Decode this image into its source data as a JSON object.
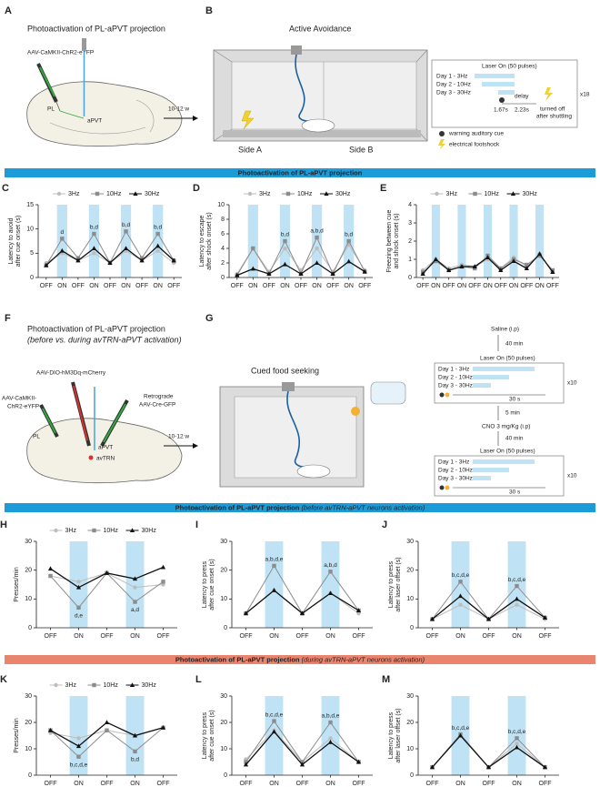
{
  "top": {
    "A": {
      "letter": "A",
      "title": "Photoactivation of PL-aPVT projection",
      "virus": "AAV-CaMKII-ChR2-eYFP",
      "pl": "PL",
      "apvt": "aPVT",
      "weeks": "10-12 w"
    },
    "B": {
      "letter": "B",
      "title": "Active Avoidance",
      "side_a": "Side A",
      "side_b": "Side B",
      "laser": "Laser On (50 pulses)",
      "days": [
        "Day 1 -  3Hz",
        "Day 2 - 10Hz",
        "Day 3 - 30Hz"
      ],
      "delay": "delay",
      "t1": "1.67s",
      "t2": "2.23s",
      "off": [
        "turned off",
        "after shuttling"
      ],
      "repeat": "x18",
      "cue": "warning auditory cue",
      "shock": "electrical footshock"
    }
  },
  "middle": {
    "F": {
      "letter": "F",
      "title": "Photoactivation of PL-aPVT projection",
      "subtitle": "(before vs. during avTRN-aPVT activation)",
      "virus1": "AAV-DIO-hM3Dq-mCherry",
      "virus2": [
        "AAV-CaMKII-",
        "ChR2-eYFP"
      ],
      "virus3": [
        "Retrograde",
        "AAV-Cre-GFP"
      ],
      "pl": "PL",
      "apvt": "aPVT",
      "avtrn": "avTRN",
      "weeks": "10-12 w"
    },
    "G": {
      "letter": "G",
      "title": "Cued food seeking",
      "saline": "Saline (i.p)",
      "wait1": "40 min",
      "laser1": "Laser On (50 pulses)",
      "days1": [
        "Day 1 -  3Hz",
        "Day 2 - 10Hz",
        "Day 3 - 30Hz"
      ],
      "dur1": "30 s",
      "repeat1": "x10",
      "wait2": "5 min",
      "cno": "CNO 3 mg/Kg (i.p)",
      "wait3": "40 min",
      "laser2": "Laser On (50 pulses)",
      "days2": [
        "Day 1 -  3Hz",
        "Day 2 - 10Hz",
        "Day 3 - 30Hz"
      ],
      "dur2": "30 s",
      "repeat2": "x10"
    }
  },
  "banners": [
    {
      "text": "Photoactivation of PL-aPVT projection",
      "color": "#1b9bd7"
    },
    {
      "text": "Photoactivation of PL-aPVT projection",
      "note": "(before avTRN-aPVT neurons activation)",
      "color": "#1b9bd7"
    },
    {
      "text": "Photoactivation of PL-aPVT projection",
      "note": "(during avTRN-aPVT neurons activation)",
      "color": "#e9846f"
    }
  ],
  "chart_data": [
    {
      "type": "line",
      "label": "C",
      "ylabel": [
        "Latency to avoid",
        "after cue onset (s)"
      ],
      "ylim": [
        0,
        15
      ],
      "yticks": [
        0,
        5,
        10,
        15
      ],
      "categories": [
        "OFF",
        "ON",
        "OFF",
        "ON",
        "OFF",
        "ON",
        "OFF",
        "ON",
        "OFF"
      ],
      "legend": "top",
      "annotations": [
        "d",
        "b,d",
        "b,d",
        "b,d"
      ],
      "annotation_position": "above",
      "series": [
        {
          "name": "3Hz",
          "color": "#bdbdbd",
          "marker": "circle",
          "values": [
            3,
            5,
            3.5,
            5,
            3,
            5.5,
            3.5,
            5.5,
            3
          ]
        },
        {
          "name": "10Hz",
          "color": "#8c8c8c",
          "marker": "square",
          "values": [
            2.5,
            8,
            4,
            9,
            3,
            9.5,
            4,
            9,
            3.5
          ]
        },
        {
          "name": "30Hz",
          "color": "#111111",
          "marker": "triangle",
          "values": [
            2.5,
            5.5,
            3.5,
            6,
            3,
            6,
            3.5,
            6.5,
            3.5
          ]
        }
      ]
    },
    {
      "type": "line",
      "label": "D",
      "ylabel": [
        "Latency to escape",
        "after shock onset (s)"
      ],
      "ylim": [
        0,
        10
      ],
      "yticks": [
        0,
        2,
        4,
        6,
        8,
        10
      ],
      "categories": [
        "OFF",
        "ON",
        "OFF",
        "ON",
        "OFF",
        "ON",
        "OFF",
        "ON",
        "OFF"
      ],
      "legend": "top",
      "annotations": [
        null,
        "b,d",
        "a,b,d",
        "b,d"
      ],
      "annotation_position": "above",
      "series": [
        {
          "name": "3Hz",
          "color": "#bdbdbd",
          "marker": "circle",
          "values": [
            0.5,
            4,
            0.8,
            4,
            1,
            4,
            0.8,
            4.5,
            1
          ]
        },
        {
          "name": "10Hz",
          "color": "#8c8c8c",
          "marker": "square",
          "values": [
            0.3,
            4,
            0.5,
            5,
            0.5,
            5.5,
            0.5,
            5,
            0.8
          ]
        },
        {
          "name": "30Hz",
          "color": "#111111",
          "marker": "triangle",
          "values": [
            0.3,
            1.2,
            0.5,
            1.8,
            0.5,
            2,
            0.5,
            2.2,
            0.8
          ]
        }
      ]
    },
    {
      "type": "line",
      "label": "E",
      "ylabel": [
        "Freezing between cue",
        "and shock onset (s)"
      ],
      "ylim": [
        0,
        4
      ],
      "yticks": [
        0,
        1,
        2,
        3,
        4
      ],
      "categories": [
        "OFF",
        "ON",
        "OFF",
        "ON",
        "OFF",
        "ON",
        "OFF",
        "ON",
        "OFF",
        "ON",
        "OFF"
      ],
      "legend": "top",
      "series": [
        {
          "name": "3Hz",
          "color": "#bdbdbd",
          "marker": "circle",
          "values": [
            0.4,
            1,
            0.5,
            0.7,
            0.6,
            1,
            0.5,
            1.1,
            0.6,
            1.3,
            0.3
          ]
        },
        {
          "name": "10Hz",
          "color": "#8c8c8c",
          "marker": "square",
          "values": [
            0.3,
            0.9,
            0.4,
            0.6,
            0.5,
            1.2,
            0.5,
            1,
            0.7,
            1.2,
            0.4
          ]
        },
        {
          "name": "30Hz",
          "color": "#111111",
          "marker": "triangle",
          "values": [
            0.2,
            1,
            0.4,
            0.6,
            0.6,
            1.1,
            0.4,
            0.9,
            0.5,
            1.3,
            0.3
          ]
        }
      ]
    },
    {
      "type": "line",
      "label": "H",
      "ylabel": [
        "Presses/min"
      ],
      "ylim": [
        0,
        30
      ],
      "yticks": [
        0,
        10,
        20,
        30
      ],
      "categories": [
        "OFF",
        "ON",
        "OFF",
        "ON",
        "OFF"
      ],
      "legend": "top",
      "annotations": [
        "d,e",
        "a,d"
      ],
      "annotation_position": "below",
      "series": [
        {
          "name": "3Hz",
          "color": "#bdbdbd",
          "marker": "circle",
          "values": [
            18,
            16,
            19,
            14,
            15
          ]
        },
        {
          "name": "10Hz",
          "color": "#8c8c8c",
          "marker": "square",
          "values": [
            18,
            7,
            19,
            9,
            16
          ]
        },
        {
          "name": "30Hz",
          "color": "#111111",
          "marker": "triangle",
          "values": [
            20.5,
            14,
            19,
            17,
            21
          ]
        }
      ]
    },
    {
      "type": "line",
      "label": "I",
      "ylabel": [
        "Latency to press",
        "after cue onset (s)"
      ],
      "ylim": [
        0,
        30
      ],
      "yticks": [
        0,
        10,
        20,
        30
      ],
      "categories": [
        "OFF",
        "ON",
        "OFF",
        "ON",
        "OFF"
      ],
      "annotations": [
        "a,b,d,e",
        "a,b,d"
      ],
      "annotation_position": "above",
      "series": [
        {
          "name": "3Hz",
          "color": "#bdbdbd",
          "marker": "circle",
          "values": [
            5,
            13,
            5,
            12,
            5
          ]
        },
        {
          "name": "10Hz",
          "color": "#8c8c8c",
          "marker": "square",
          "values": [
            5,
            21.5,
            5,
            19.5,
            6
          ]
        },
        {
          "name": "30Hz",
          "color": "#111111",
          "marker": "triangle",
          "values": [
            5,
            13,
            5,
            12,
            6
          ]
        }
      ]
    },
    {
      "type": "line",
      "label": "J",
      "ylabel": [
        "Latency to press",
        "after laser offset (s)"
      ],
      "ylim": [
        0,
        30
      ],
      "yticks": [
        0,
        10,
        20,
        30
      ],
      "categories": [
        "OFF",
        "ON",
        "OFF",
        "ON",
        "OFF"
      ],
      "annotations": [
        "b,c,d,e",
        "b,c,d,e"
      ],
      "annotation_position": "above",
      "series": [
        {
          "name": "3Hz",
          "color": "#bdbdbd",
          "marker": "circle",
          "values": [
            3,
            8,
            3,
            8,
            3
          ]
        },
        {
          "name": "10Hz",
          "color": "#8c8c8c",
          "marker": "square",
          "values": [
            3,
            16,
            3,
            14.5,
            3.5
          ]
        },
        {
          "name": "30Hz",
          "color": "#111111",
          "marker": "triangle",
          "values": [
            3,
            11,
            3,
            10,
            3.5
          ]
        }
      ]
    },
    {
      "type": "line",
      "label": "K",
      "ylabel": [
        "Presses/min"
      ],
      "ylim": [
        0,
        30
      ],
      "yticks": [
        0,
        10,
        20,
        30
      ],
      "categories": [
        "OFF",
        "ON",
        "OFF",
        "ON",
        "OFF"
      ],
      "legend": "top",
      "annotations": [
        "b,c,d,e",
        "b,d"
      ],
      "annotation_position": "below",
      "series": [
        {
          "name": "3Hz",
          "color": "#bdbdbd",
          "marker": "circle",
          "values": [
            16,
            14,
            17,
            15,
            18
          ]
        },
        {
          "name": "10Hz",
          "color": "#8c8c8c",
          "marker": "square",
          "values": [
            17,
            7,
            17,
            9,
            18
          ]
        },
        {
          "name": "30Hz",
          "color": "#111111",
          "marker": "triangle",
          "values": [
            17,
            11,
            20,
            15,
            18
          ]
        }
      ]
    },
    {
      "type": "line",
      "label": "L",
      "ylabel": [
        "Latency to press",
        "after cue onset (s)"
      ],
      "ylim": [
        0,
        30
      ],
      "yticks": [
        0,
        10,
        20,
        30
      ],
      "categories": [
        "OFF",
        "ON",
        "OFF",
        "ON",
        "OFF"
      ],
      "annotations": [
        "b,c,d,e",
        "a,b,d,e"
      ],
      "annotation_position": "above",
      "series": [
        {
          "name": "3Hz",
          "color": "#bdbdbd",
          "marker": "circle",
          "values": [
            6,
            17,
            5,
            14,
            5
          ]
        },
        {
          "name": "10Hz",
          "color": "#8c8c8c",
          "marker": "square",
          "values": [
            5,
            20.5,
            5,
            20,
            5
          ]
        },
        {
          "name": "30Hz",
          "color": "#111111",
          "marker": "triangle",
          "values": [
            4,
            16.5,
            4,
            12.5,
            5
          ]
        }
      ]
    },
    {
      "type": "line",
      "label": "M",
      "ylabel": [
        "Latency to press",
        "after laser offset (s)"
      ],
      "ylim": [
        0,
        30
      ],
      "yticks": [
        0,
        10,
        20,
        30
      ],
      "categories": [
        "OFF",
        "ON",
        "OFF",
        "ON",
        "OFF"
      ],
      "annotations": [
        "b,c,d,e",
        "b,c,d,e"
      ],
      "annotation_position": "above",
      "series": [
        {
          "name": "3Hz",
          "color": "#bdbdbd",
          "marker": "circle",
          "values": [
            3,
            15,
            3,
            12,
            3
          ]
        },
        {
          "name": "10Hz",
          "color": "#8c8c8c",
          "marker": "square",
          "values": [
            3,
            15.5,
            3,
            14,
            3
          ]
        },
        {
          "name": "30Hz",
          "color": "#111111",
          "marker": "triangle",
          "values": [
            3,
            15,
            3,
            10.5,
            3
          ]
        }
      ]
    }
  ]
}
